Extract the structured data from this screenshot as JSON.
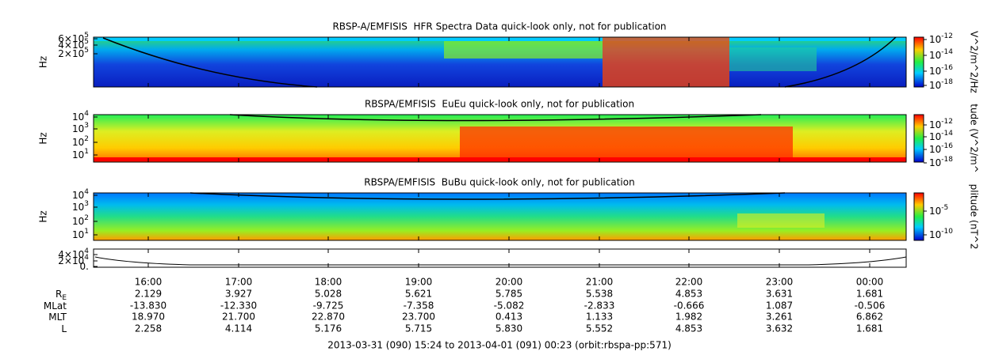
{
  "panels": [
    {
      "title": "RBSP-A/EMFISIS  HFR Spectra Data quick-look only, not for publication",
      "y_label": "Hz",
      "yticks": [
        {
          "base": "6×10",
          "exp": "5"
        },
        {
          "base": "4×10",
          "exp": "5"
        },
        {
          "base": "2×10",
          "exp": "5"
        }
      ],
      "colorbar_label": "V^2/m^2/Hz",
      "colorbar_ticks": [
        {
          "base": "10",
          "exp": "-12"
        },
        {
          "base": "10",
          "exp": "-14"
        },
        {
          "base": "10",
          "exp": "-16"
        },
        {
          "base": "10",
          "exp": "-18"
        }
      ]
    },
    {
      "title": "RBSPA/EMFISIS  EuEu quick-look only, not for publication",
      "y_label": "Hz",
      "yticks": [
        {
          "base": "10",
          "exp": "4"
        },
        {
          "base": "10",
          "exp": "3"
        },
        {
          "base": "10",
          "exp": "2"
        },
        {
          "base": "10",
          "exp": "1"
        }
      ],
      "colorbar_label": "tude (V^2/m^",
      "colorbar_ticks": [
        {
          "base": "10",
          "exp": "-12"
        },
        {
          "base": "10",
          "exp": "-14"
        },
        {
          "base": "10",
          "exp": "-16"
        },
        {
          "base": "10",
          "exp": "-18"
        }
      ]
    },
    {
      "title": "RBSPA/EMFISIS  BuBu quick-look only, not for publication",
      "y_label": "Hz",
      "yticks": [
        {
          "base": "10",
          "exp": "4"
        },
        {
          "base": "10",
          "exp": "3"
        },
        {
          "base": "10",
          "exp": "2"
        },
        {
          "base": "10",
          "exp": "1"
        }
      ],
      "colorbar_label": "plitude (nT^2",
      "colorbar_ticks": [
        {
          "base": "10",
          "exp": "-5"
        },
        {
          "base": "10",
          "exp": "-10"
        }
      ]
    },
    {
      "yticks": [
        {
          "base": "4×10",
          "exp": "4"
        },
        {
          "base": "2×10",
          "exp": "4"
        },
        {
          "base": "0."
        }
      ]
    }
  ],
  "x_ticks": [
    "16:00",
    "17:00",
    "18:00",
    "19:00",
    "20:00",
    "21:00",
    "22:00",
    "23:00",
    "00:00"
  ],
  "ephemeris": [
    {
      "label": {
        "base": "R",
        "sub": "E"
      },
      "values": [
        "2.129",
        "3.927",
        "5.028",
        "5.621",
        "5.785",
        "5.538",
        "4.853",
        "3.631",
        "1.681"
      ]
    },
    {
      "label": {
        "base": "MLat"
      },
      "values": [
        "-13.830",
        "-12.330",
        "-9.725",
        "-7.358",
        "-5.082",
        "-2.833",
        "-0.666",
        "1.087",
        "-0.506"
      ]
    },
    {
      "label": {
        "base": "MLT"
      },
      "values": [
        "18.970",
        "21.700",
        "22.870",
        "23.700",
        "0.413",
        "1.133",
        "1.982",
        "3.261",
        "6.862"
      ]
    },
    {
      "label": {
        "base": "L"
      },
      "values": [
        "2.258",
        "4.114",
        "5.176",
        "5.715",
        "5.830",
        "5.552",
        "4.853",
        "3.632",
        "1.681"
      ]
    }
  ],
  "footer": "2013-03-31 (090) 15:24 to 2013-04-01 (091) 00:23 (orbit:rbspa-pp:571)"
}
